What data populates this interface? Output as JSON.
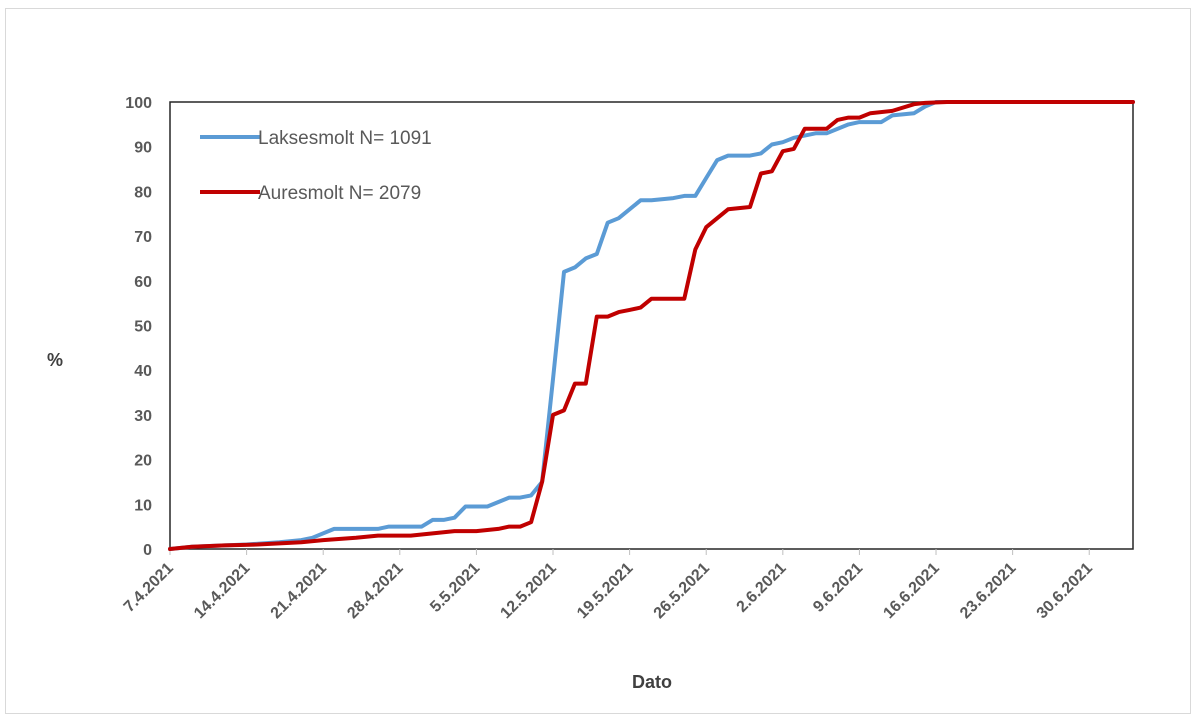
{
  "chart_data": {
    "type": "line",
    "ylabel": "%",
    "xlabel": "Dato",
    "ylim": [
      0,
      100
    ],
    "yticks": [
      "0",
      "10",
      "20",
      "30",
      "40",
      "50",
      "60",
      "70",
      "80",
      "90",
      "100"
    ],
    "xlim": [
      "2021-04-07",
      "2021-07-04"
    ],
    "xtick_labels": [
      "7.4.2021",
      "14.4.2021",
      "21.4.2021",
      "28.4.2021",
      "5.5.2021",
      "12.5.2021",
      "19.5.2021",
      "26.5.2021",
      "2.6.2021",
      "9.6.2021",
      "16.6.2021",
      "23.6.2021",
      "30.6.2021"
    ],
    "grid": false,
    "legend_position": "top-left",
    "series": [
      {
        "name": "Laksesmolt  N= 1091",
        "color": "#5b9bd5",
        "x": [
          "2021-04-07",
          "2021-04-09",
          "2021-04-12",
          "2021-04-14",
          "2021-04-17",
          "2021-04-19",
          "2021-04-20",
          "2021-04-22",
          "2021-04-23",
          "2021-04-26",
          "2021-04-27",
          "2021-04-30",
          "2021-05-01",
          "2021-05-02",
          "2021-05-03",
          "2021-05-04",
          "2021-05-05",
          "2021-05-06",
          "2021-05-08",
          "2021-05-09",
          "2021-05-10",
          "2021-05-11",
          "2021-05-12",
          "2021-05-13",
          "2021-05-14",
          "2021-05-15",
          "2021-05-16",
          "2021-05-17",
          "2021-05-18",
          "2021-05-20",
          "2021-05-21",
          "2021-05-23",
          "2021-05-24",
          "2021-05-25",
          "2021-05-26",
          "2021-05-27",
          "2021-05-28",
          "2021-05-30",
          "2021-05-31",
          "2021-06-01",
          "2021-06-02",
          "2021-06-03",
          "2021-06-05",
          "2021-06-06",
          "2021-06-08",
          "2021-06-09",
          "2021-06-11",
          "2021-06-12",
          "2021-06-14",
          "2021-06-15",
          "2021-06-16",
          "2021-07-04"
        ],
        "values": [
          0,
          0.5,
          0.8,
          1,
          1.5,
          2,
          2.5,
          4.5,
          4.5,
          4.5,
          5,
          5,
          6.5,
          6.5,
          7,
          9.5,
          9.5,
          9.5,
          11.5,
          11.5,
          12,
          15,
          38,
          62,
          63,
          65,
          66,
          73,
          74,
          78,
          78,
          78.5,
          79,
          79,
          83,
          87,
          88,
          88,
          88.5,
          90.5,
          91,
          92,
          93,
          93,
          95,
          95.5,
          95.5,
          97,
          97.5,
          99,
          100,
          100
        ]
      },
      {
        "name": "Auresmolt  N= 2079",
        "color": "#c00000",
        "x": [
          "2021-04-07",
          "2021-04-09",
          "2021-04-12",
          "2021-04-15",
          "2021-04-19",
          "2021-04-21",
          "2021-04-24",
          "2021-04-26",
          "2021-04-29",
          "2021-05-01",
          "2021-05-03",
          "2021-05-05",
          "2021-05-07",
          "2021-05-08",
          "2021-05-09",
          "2021-05-10",
          "2021-05-11",
          "2021-05-12",
          "2021-05-13",
          "2021-05-14",
          "2021-05-15",
          "2021-05-16",
          "2021-05-17",
          "2021-05-18",
          "2021-05-19",
          "2021-05-20",
          "2021-05-21",
          "2021-05-22",
          "2021-05-23",
          "2021-05-24",
          "2021-05-25",
          "2021-05-26",
          "2021-05-27",
          "2021-05-28",
          "2021-05-30",
          "2021-05-31",
          "2021-06-01",
          "2021-06-02",
          "2021-06-03",
          "2021-06-04",
          "2021-06-05",
          "2021-06-06",
          "2021-06-07",
          "2021-06-08",
          "2021-06-09",
          "2021-06-10",
          "2021-06-12",
          "2021-06-14",
          "2021-06-15",
          "2021-06-17",
          "2021-07-04"
        ],
        "values": [
          0,
          0.5,
          0.8,
          1,
          1.5,
          2,
          2.5,
          3,
          3,
          3.5,
          4,
          4,
          4.5,
          5,
          5,
          6,
          15,
          30,
          31,
          37,
          37,
          52,
          52,
          53,
          53.5,
          54,
          56,
          56,
          56,
          56,
          67,
          72,
          74,
          76,
          76.5,
          84,
          84.5,
          89,
          89.5,
          94,
          94,
          94,
          96,
          96.5,
          96.5,
          97.5,
          98,
          99.5,
          99.8,
          100,
          100
        ]
      }
    ]
  }
}
